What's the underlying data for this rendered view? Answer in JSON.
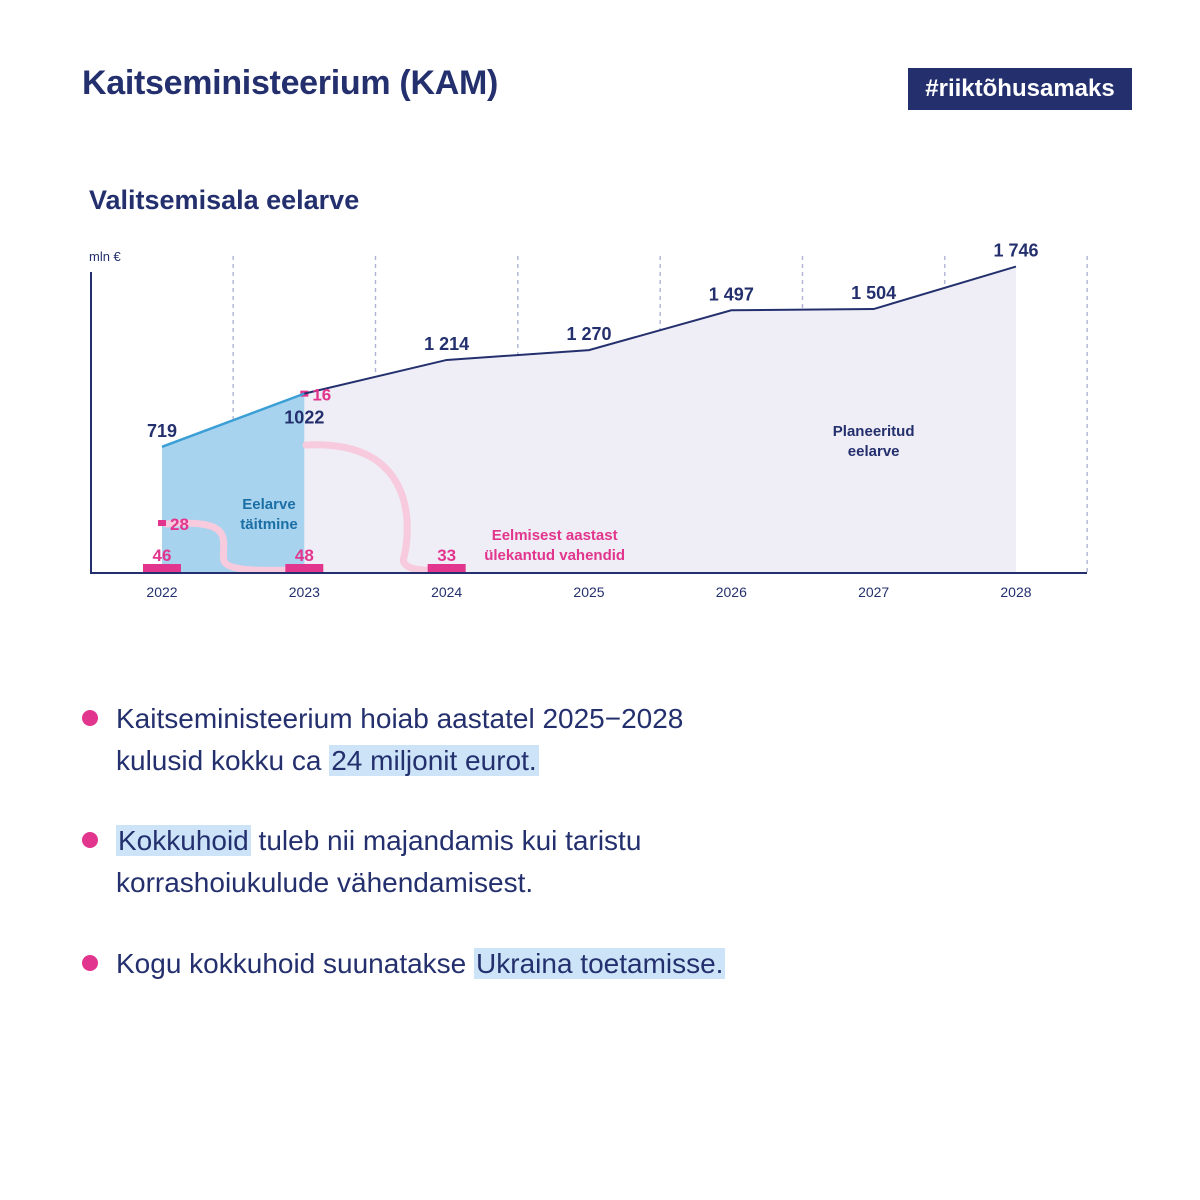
{
  "header": {
    "title": "Kaitseministeerium (KAM)",
    "hashtag": "#riiktõhusamaks"
  },
  "chart_title": "Valitsemisala eelarve",
  "chart_data": {
    "type": "area",
    "unit_label": "mln €",
    "categories": [
      "2022",
      "2023",
      "2024",
      "2025",
      "2026",
      "2027",
      "2028"
    ],
    "ylim": [
      0,
      1800
    ],
    "grid": "vertical dashed",
    "series": [
      {
        "name": "Eelarve täitmine",
        "x": [
          "2022",
          "2023"
        ],
        "values": [
          719,
          1022
        ],
        "value_labels": [
          "719",
          "1022"
        ],
        "color": "#a8d3ef"
      },
      {
        "name": "Planeeritud eelarve",
        "x": [
          "2023",
          "2024",
          "2025",
          "2026",
          "2027",
          "2028"
        ],
        "values": [
          1022,
          1214,
          1270,
          1497,
          1504,
          1746
        ],
        "value_labels": [
          "",
          "1 214",
          "1 270",
          "1 497",
          "1 504",
          "1 746"
        ],
        "color": "#efedf5"
      },
      {
        "name": "Eelmisest aastast ülekantud vahendid",
        "type": "bar",
        "x": [
          "2022",
          "2023",
          "2024"
        ],
        "values": [
          46,
          48,
          33
        ],
        "color": "#e2358d"
      },
      {
        "name": "Eelmisest aastast ülekantud vahendid (eelarve täitmine)",
        "type": "marker",
        "x": [
          "2022",
          "2023"
        ],
        "values": [
          28,
          16
        ],
        "color": "#e2358d"
      }
    ],
    "annotations": [
      {
        "text_lines": [
          "Eelarve",
          "täitmine"
        ],
        "color": "#1b6fa5"
      },
      {
        "text_lines": [
          "Planeeritud",
          "eelarve"
        ],
        "color": "#24306e"
      },
      {
        "text_lines": [
          "Eelmisest aastast",
          "ülekantud vahendid"
        ],
        "color": "#e2358d"
      }
    ]
  },
  "bullets": [
    {
      "lines": [
        [
          {
            "text": "Kaitseministeerium hoiab aastatel 2025−2028"
          }
        ],
        [
          {
            "text": "kulusid kokku ca "
          },
          {
            "text": "24 miljonit eurot.",
            "highlight": true
          }
        ]
      ]
    },
    {
      "lines": [
        [
          {
            "text": "Kokkuhoid",
            "highlight": true
          },
          {
            "text": " tuleb nii majandamis kui taristu"
          }
        ],
        [
          {
            "text": "korrashoiukulude vähendamisest."
          }
        ]
      ]
    },
    {
      "lines": [
        [
          {
            "text": "Kogu kokkuhoid suunatakse "
          },
          {
            "text": "Ukraina toetamisse.",
            "highlight": true
          }
        ]
      ]
    }
  ],
  "colors": {
    "navy": "#24306e",
    "pink": "#e2358d",
    "light_blue": "#a8d3ef",
    "highlight": "#cde4f8",
    "planned_fill": "#efedf5"
  }
}
